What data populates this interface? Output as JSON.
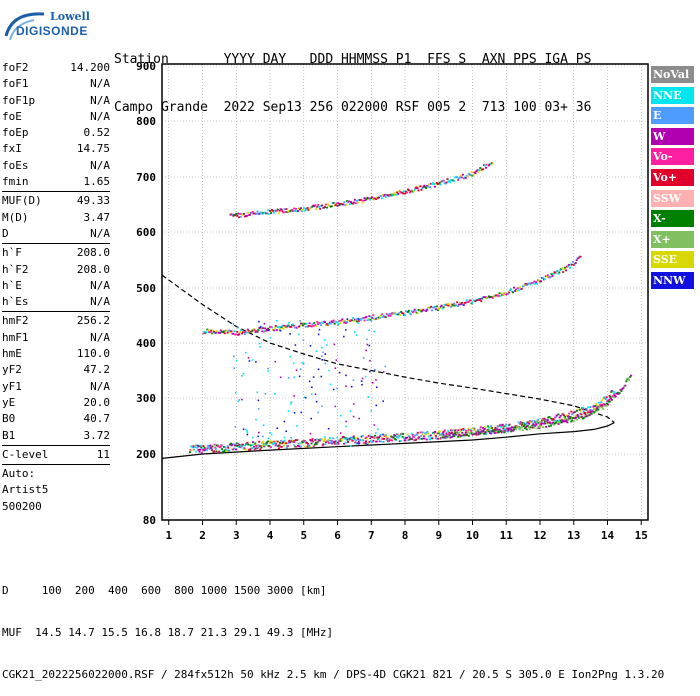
{
  "logo": {
    "line1": "Lowell",
    "line2": "DIGISONDE"
  },
  "header": {
    "labels_row": "Station       YYYY DAY   DDD HHMMSS P1  FFS S  AXN PPS IGA PS",
    "values_row": "Campo Grande  2022 Sep13 256 022000 RSF 005 2  713 100 03+ 36"
  },
  "params": {
    "group1": [
      {
        "label": "foF2",
        "value": "14.200"
      },
      {
        "label": "foF1",
        "value": "N/A"
      },
      {
        "label": "foF1p",
        "value": "N/A"
      },
      {
        "label": "foE",
        "value": "N/A"
      },
      {
        "label": "foEp",
        "value": "0.52"
      },
      {
        "label": "fxI",
        "value": "14.75"
      },
      {
        "label": "foEs",
        "value": "N/A"
      },
      {
        "label": "fmin",
        "value": "1.65"
      }
    ],
    "group2": [
      {
        "label": "MUF(D)",
        "value": "49.33"
      },
      {
        "label": "M(D)",
        "value": "3.47"
      },
      {
        "label": "D",
        "value": "N/A"
      }
    ],
    "group3": [
      {
        "label": "h`F",
        "value": "208.0"
      },
      {
        "label": "h`F2",
        "value": "208.0"
      },
      {
        "label": "h`E",
        "value": "N/A"
      },
      {
        "label": "h`Es",
        "value": "N/A"
      }
    ],
    "group4": [
      {
        "label": "hmF2",
        "value": "256.2"
      },
      {
        "label": "hmF1",
        "value": "N/A"
      },
      {
        "label": "hmE",
        "value": "110.0"
      },
      {
        "label": "yF2",
        "value": "47.2"
      },
      {
        "label": "yF1",
        "value": "N/A"
      },
      {
        "label": "yE",
        "value": "20.0"
      },
      {
        "label": "B0",
        "value": "40.7"
      },
      {
        "label": "B1",
        "value": "3.72"
      }
    ],
    "group5": [
      {
        "label": "C-level",
        "value": "11"
      }
    ],
    "auto_lines": [
      "Auto:",
      "Artist5",
      "500200"
    ]
  },
  "legend": [
    {
      "label": "NoVal",
      "bg": "#8c8c8c",
      "fg": "#ffffff"
    },
    {
      "label": "NNE",
      "bg": "#00e5ee",
      "fg": "#ffffff"
    },
    {
      "label": "E",
      "bg": "#4f9cff",
      "fg": "#ffffff"
    },
    {
      "label": "W",
      "bg": "#b000b0",
      "fg": "#ffffff"
    },
    {
      "label": "Vo-",
      "bg": "#ff1fa0",
      "fg": "#ffffff"
    },
    {
      "label": "Vo+",
      "bg": "#e0002a",
      "fg": "#ffffff"
    },
    {
      "label": "SSW",
      "bg": "#ffb0b0",
      "fg": "#ffffff"
    },
    {
      "label": "X-",
      "bg": "#008000",
      "fg": "#ffffff"
    },
    {
      "label": "X+",
      "bg": "#80c060",
      "fg": "#ffffff"
    },
    {
      "label": "SSE",
      "bg": "#d8d800",
      "fg": "#ffffff"
    },
    {
      "label": "NNW",
      "bg": "#1010e0",
      "fg": "#ffffff"
    }
  ],
  "footer": {
    "line1": "D     100  200  400  600  800 1000 1500 3000 [km]",
    "line2": "MUF  14.5 14.7 15.5 16.8 18.7 21.3 29.1 49.3 [MHz]",
    "line3": "CGK21_2022256022000.RSF / 284fx512h 50 kHz 2.5 km / DPS-4D CGK21 821 / 20.5 S 305.0 E Ion2Png 1.3.20"
  },
  "chart_data": {
    "type": "scatter",
    "x_ticks": [
      1,
      2,
      3,
      4,
      5,
      6,
      7,
      8,
      9,
      10,
      11,
      12,
      13,
      14,
      15
    ],
    "y_ticks": [
      80,
      200,
      300,
      400,
      500,
      600,
      700,
      800,
      900
    ],
    "xlim": [
      0.8,
      15.2
    ],
    "grid": true,
    "traces": [
      {
        "name": "O-trace F2",
        "x": [
          1.6,
          2.0,
          3.0,
          4.0,
          5.0,
          6.0,
          7.0,
          8.0,
          9.0,
          10.0,
          11.0,
          12.0,
          13.0,
          13.5,
          14.0,
          14.2
        ],
        "y": [
          212,
          210,
          214,
          218,
          221,
          225,
          228,
          232,
          236,
          242,
          248,
          258,
          272,
          283,
          300,
          315
        ]
      },
      {
        "name": "X-trace F2",
        "x": [
          9.0,
          10.0,
          11.0,
          12.0,
          13.0,
          13.5,
          14.0,
          14.4,
          14.7
        ],
        "y": [
          233,
          238,
          244,
          252,
          264,
          274,
          292,
          318,
          345
        ]
      },
      {
        "name": "Multiple 2F",
        "x": [
          2.0,
          3.0,
          4.0,
          5.0,
          6.0,
          7.0,
          8.0,
          9.0,
          10.0,
          11.0,
          12.0,
          12.8,
          13.2
        ],
        "y": [
          423,
          420,
          428,
          434,
          440,
          448,
          456,
          466,
          478,
          494,
          515,
          538,
          558
        ]
      },
      {
        "name": "Multiple 3F",
        "x": [
          2.8,
          4.0,
          5.0,
          6.0,
          7.0,
          8.0,
          9.0,
          10.0,
          10.6
        ],
        "y": [
          630,
          638,
          644,
          652,
          662,
          675,
          690,
          708,
          730
        ]
      },
      {
        "name": "Spread scatter",
        "x": [
          2.8,
          3.2,
          3.6,
          4.0,
          4.4,
          4.8,
          5.2,
          5.6,
          6.2,
          7.2
        ],
        "y": [
          300,
          320,
          280,
          310,
          270,
          290,
          260,
          310,
          280,
          290
        ]
      }
    ],
    "profile_curve": {
      "x": [
        0.8,
        2.0,
        4.0,
        6.0,
        8.0,
        10.0,
        11.0,
        12.0,
        13.0,
        13.6,
        14.0,
        14.2
      ],
      "y": [
        192,
        200,
        207,
        213,
        219,
        225,
        230,
        236,
        240,
        244,
        250,
        256
      ]
    },
    "muf_curve": {
      "x": [
        0.8,
        2.0,
        3.0,
        4.0,
        5.0,
        6.0,
        7.0,
        8.0,
        9.0,
        10.0,
        11.0,
        12.0,
        13.0,
        14.0,
        14.2
      ],
      "y": [
        523,
        470,
        430,
        400,
        380,
        362,
        350,
        338,
        327,
        318,
        308,
        298,
        286,
        266,
        256
      ]
    }
  }
}
